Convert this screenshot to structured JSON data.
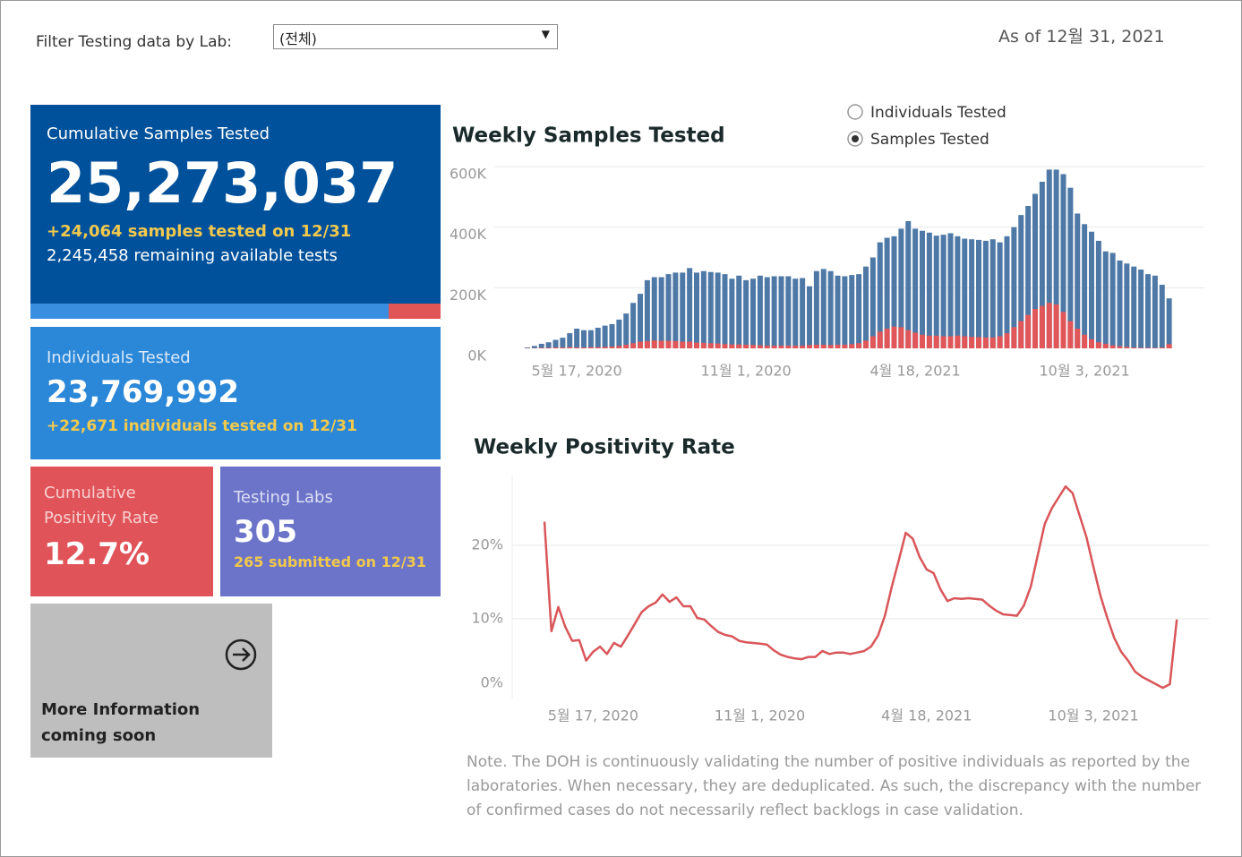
{
  "filter": {
    "label": "Filter Testing data by Lab:",
    "value": "(전체)"
  },
  "as_of": "As of 12월 31, 2021",
  "cards": {
    "samples": {
      "title": "Cumulative Samples Tested",
      "value": "25,273,037",
      "delta": "+24,064 samples tested on 12/31",
      "remaining": "2,245,458 remaining available tests"
    },
    "individuals": {
      "title": "Individuals Tested",
      "value": "23,769,992",
      "delta": "+22,671  individuals  tested on 12/31"
    },
    "positivity": {
      "title": "Cumulative Positivity Rate",
      "value": "12.7%"
    },
    "labs": {
      "title": "Testing Labs",
      "value": "305",
      "delta": "265 submitted on 12/31"
    },
    "more": {
      "title": "More Information coming soon"
    }
  },
  "note": "Note. The DOH is continuously validating the number of positive individuals as reported by the laboratories. When necessary, they are deduplicated. As such, the discrepancy with the number of confirmed cases do not necessarily reflect backlogs in case validation.",
  "chart_data": [
    {
      "type": "bar",
      "title": "Weekly Samples Tested",
      "toggle": {
        "options": [
          "Individuals Tested",
          "Samples Tested"
        ],
        "selected": 1
      },
      "categories": [
        null,
        null,
        null,
        null,
        null,
        null,
        null,
        "5월 17, 2020",
        null,
        null,
        null,
        null,
        null,
        null,
        null,
        null,
        null,
        null,
        null,
        null,
        null,
        null,
        null,
        null,
        null,
        null,
        null,
        null,
        null,
        null,
        null,
        "11월 1, 2020",
        null,
        null,
        null,
        null,
        null,
        null,
        null,
        null,
        null,
        null,
        null,
        null,
        null,
        null,
        null,
        null,
        null,
        null,
        null,
        null,
        null,
        null,
        null,
        "4월 18, 2021",
        null,
        null,
        null,
        null,
        null,
        null,
        null,
        null,
        null,
        null,
        null,
        null,
        null,
        null,
        null,
        null,
        null,
        null,
        null,
        null,
        null,
        null,
        null,
        "10월 3, 2021",
        null,
        null,
        null,
        null,
        null,
        null,
        null,
        null,
        null,
        null,
        null,
        null
      ],
      "series": [
        {
          "color": "#4e79a7",
          "values": [
            3000,
            8000,
            15000,
            20000,
            28000,
            35000,
            50000,
            65000,
            60000,
            60000,
            68000,
            75000,
            80000,
            95000,
            115000,
            150000,
            180000,
            225000,
            235000,
            235000,
            245000,
            250000,
            250000,
            265000,
            250000,
            255000,
            252000,
            250000,
            245000,
            230000,
            240000,
            225000,
            230000,
            240000,
            235000,
            238000,
            238000,
            238000,
            230000,
            232000,
            205000,
            255000,
            262000,
            255000,
            240000,
            238000,
            242000,
            245000,
            270000,
            300000,
            350000,
            365000,
            370000,
            395000,
            420000,
            395000,
            388000,
            382000,
            372000,
            375000,
            380000,
            370000,
            362000,
            360000,
            358000,
            355000,
            360000,
            350000,
            370000,
            400000,
            440000,
            470000,
            510000,
            550000,
            590000,
            590000,
            575000,
            530000,
            445000,
            410000,
            385000,
            355000,
            320000,
            315000,
            290000,
            280000,
            270000,
            260000,
            245000,
            240000,
            210000,
            165000
          ]
        },
        {
          "color": "#e15759",
          "values": [
            1000,
            1000,
            2000,
            2000,
            3000,
            3000,
            4000,
            3000,
            3000,
            4000,
            4000,
            5000,
            6000,
            8000,
            12000,
            17000,
            22000,
            24000,
            26000,
            25000,
            25000,
            24000,
            22000,
            22000,
            19000,
            18000,
            17000,
            16000,
            14000,
            13000,
            13000,
            12000,
            11000,
            10000,
            9000,
            9000,
            9000,
            9000,
            9000,
            9000,
            11000,
            12000,
            12000,
            11000,
            12000,
            12000,
            14000,
            17000,
            25000,
            40000,
            55000,
            65000,
            72000,
            70000,
            60000,
            52000,
            45000,
            42000,
            42000,
            40000,
            40000,
            42000,
            40000,
            38000,
            37000,
            36000,
            36000,
            40000,
            50000,
            70000,
            90000,
            110000,
            130000,
            140000,
            150000,
            145000,
            120000,
            90000,
            65000,
            45000,
            30000,
            20000,
            15000,
            10000,
            7000,
            5000,
            3000,
            2000,
            2000,
            2000,
            3000,
            14000
          ]
        }
      ],
      "ylim": [
        0,
        600000
      ],
      "yticks": [
        {
          "value": 0,
          "label": "0K"
        },
        {
          "value": 200000,
          "label": "200K"
        },
        {
          "value": 400000,
          "label": "400K"
        },
        {
          "value": 600000,
          "label": "600K"
        }
      ],
      "grid": true
    },
    {
      "type": "line",
      "title": "Weekly Positivity Rate",
      "categories": [
        null,
        null,
        null,
        null,
        null,
        null,
        null,
        "5월 17, 2020",
        null,
        null,
        null,
        null,
        null,
        null,
        null,
        null,
        null,
        null,
        null,
        null,
        null,
        null,
        null,
        null,
        null,
        null,
        null,
        null,
        null,
        null,
        null,
        "11월 1, 2020",
        null,
        null,
        null,
        null,
        null,
        null,
        null,
        null,
        null,
        null,
        null,
        null,
        null,
        null,
        null,
        null,
        null,
        null,
        null,
        null,
        null,
        null,
        null,
        "4월 18, 2021",
        null,
        null,
        null,
        null,
        null,
        null,
        null,
        null,
        null,
        null,
        null,
        null,
        null,
        null,
        null,
        null,
        null,
        null,
        null,
        null,
        null,
        null,
        null,
        "10월 3, 2021",
        null,
        null,
        null,
        null,
        null,
        null,
        null,
        null,
        null,
        null,
        null,
        null
      ],
      "color": "#d9565a",
      "values": [
        23.2,
        8.3,
        11.6,
        8.9,
        7.0,
        7.1,
        4.3,
        5.5,
        6.2,
        5.2,
        6.7,
        6.2,
        7.7,
        9.3,
        10.9,
        11.7,
        12.2,
        13.3,
        12.3,
        12.9,
        11.7,
        11.7,
        10.1,
        9.9,
        9.0,
        8.2,
        7.8,
        7.6,
        7.0,
        6.8,
        6.7,
        6.6,
        6.5,
        5.7,
        5.1,
        4.8,
        4.6,
        4.5,
        4.8,
        4.8,
        5.6,
        5.2,
        5.4,
        5.4,
        5.2,
        5.4,
        5.6,
        6.2,
        7.7,
        10.4,
        14.4,
        18.0,
        21.7,
        20.9,
        18.4,
        16.7,
        16.2,
        14.0,
        12.4,
        12.8,
        12.7,
        12.8,
        12.7,
        12.6,
        11.8,
        11.1,
        10.6,
        10.5,
        10.4,
        11.8,
        14.4,
        18.7,
        22.9,
        25.0,
        26.5,
        28.0,
        27.1,
        24.1,
        21.1,
        17.1,
        13.2,
        10.1,
        7.4,
        5.5,
        4.3,
        2.8,
        2.1,
        1.6,
        1.1,
        0.6,
        1.1,
        9.9
      ],
      "ylim": [
        0,
        29
      ],
      "yticks": [
        {
          "value": 0,
          "label": "0%"
        },
        {
          "value": 10,
          "label": "10%"
        },
        {
          "value": 20,
          "label": "20%"
        }
      ],
      "grid": true
    }
  ]
}
